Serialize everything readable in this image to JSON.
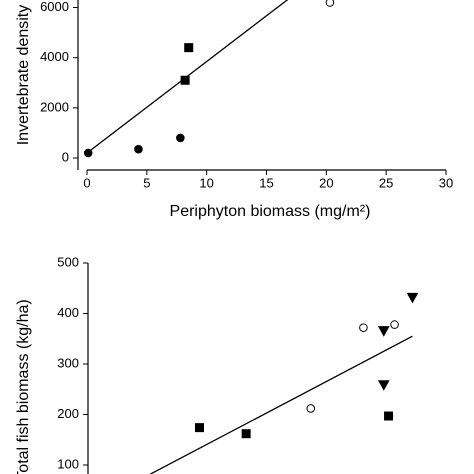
{
  "chart_data": [
    {
      "type": "scatter",
      "ylabel": "Invertebrate density",
      "xlabel": "Periphyton biomass (mg/m²)",
      "xlim": [
        0,
        30
      ],
      "xticks": [
        0,
        5,
        10,
        15,
        20,
        25,
        30
      ],
      "ylim": [
        0,
        6300
      ],
      "yticks": [
        0,
        2000,
        4000,
        6000
      ],
      "series": [
        {
          "marker": "circle",
          "filled": true,
          "color": "#000",
          "x": [
            0.1,
            4.3,
            7.8
          ],
          "values": [
            200,
            350,
            800
          ]
        },
        {
          "marker": "square",
          "filled": true,
          "color": "#000",
          "x": [
            8.2,
            8.5
          ],
          "values": [
            3100,
            4400
          ]
        },
        {
          "marker": "circle",
          "filled": false,
          "color": "#000",
          "x": [
            20.3
          ],
          "values": [
            6200
          ]
        }
      ],
      "fit": {
        "x": [
          0,
          17
        ],
        "values": [
          200,
          6400
        ]
      }
    },
    {
      "type": "scatter",
      "ylabel": "Total fish biomass (kg/ha)",
      "xlim": [
        0,
        30
      ],
      "ylim": [
        100,
        500
      ],
      "yticks": [
        100,
        200,
        300,
        400,
        500
      ],
      "series": [
        {
          "marker": "square",
          "filled": true,
          "color": "#000",
          "x": [
            9.4,
            13.3,
            25.2
          ],
          "values": [
            174,
            162,
            197
          ]
        },
        {
          "marker": "circle",
          "filled": false,
          "color": "#000",
          "x": [
            18.7,
            23.1,
            25.7
          ],
          "values": [
            212,
            372,
            378
          ]
        },
        {
          "marker": "triangle-down",
          "filled": true,
          "color": "#000",
          "x": [
            24.8,
            24.8,
            27.2
          ],
          "values": [
            366,
            259,
            432
          ]
        }
      ],
      "fit": {
        "x": [
          5.3,
          27.2
        ],
        "values": [
          82,
          355
        ]
      }
    }
  ]
}
